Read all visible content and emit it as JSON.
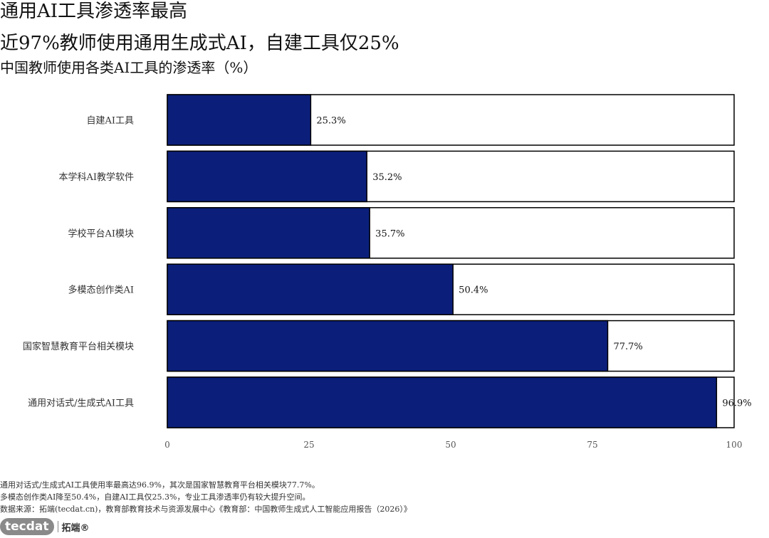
{
  "header": {
    "title": "通用AI工具渗透率最高",
    "subtitle": "近97%教师使用通用生成式AI，自建工具仅25%",
    "chart_title": "中国教师使用各类AI工具的渗透率（%）"
  },
  "notes": {
    "line1": "通用对话式/生成式AI工具使用率最高达96.9%，其次是国家智慧教育平台相关模块77.7%。",
    "line2": "多模态创作类AI降至50.4%，自建AI工具仅25.3%，专业工具渗透率仍有较大提升空间。",
    "line3": "数据来源：拓端(tecdat.cn)，教育部教育技术与资源发展中心《教育部：中国教师生成式人工智能应用报告（2026）》"
  },
  "logo": {
    "mark": "tecdat",
    "name": "拓端®"
  },
  "chart_data": {
    "type": "bar",
    "orientation": "horizontal",
    "categories": [
      "自建AI工具",
      "本学科AI教学软件",
      "学校平台AI模块",
      "多模态创作类AI",
      "国家智慧教育平台相关模块",
      "通用对话式/生成式AI工具"
    ],
    "values": [
      25.3,
      35.2,
      35.7,
      50.4,
      77.7,
      96.9
    ],
    "value_labels": [
      "25.3%",
      "35.2%",
      "35.7%",
      "50.4%",
      "77.7%",
      "96.9%"
    ],
    "xlim": [
      0,
      100
    ],
    "xticks": [
      0,
      25,
      50,
      75,
      100
    ],
    "grid": false,
    "legend": "none",
    "bar_color": "#0b1f7a",
    "track_color": "#ffffff",
    "outline_color": "#000000"
  }
}
